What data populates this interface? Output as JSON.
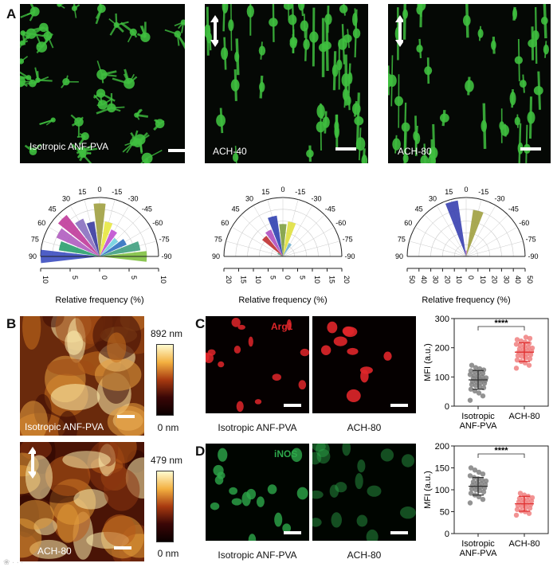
{
  "panel_letters": {
    "a": "A",
    "b": "B",
    "c": "C",
    "d": "D"
  },
  "panel_a": {
    "images": [
      {
        "caption": "Isotropic ANF-PVA",
        "aligned": false
      },
      {
        "caption": "ACH-40",
        "aligned": true
      },
      {
        "caption": "ACH-80",
        "aligned": true
      }
    ],
    "polar_xlabel": "Relative frequency (%)",
    "angle_labels": [
      "90",
      "75",
      "60",
      "45",
      "30",
      "15",
      "0",
      "-15",
      "-30",
      "-45",
      "-60",
      "-75",
      "-90"
    ],
    "polar_ticks": [
      [
        "10",
        "5",
        "0",
        "5",
        "10"
      ],
      [
        "20",
        "15",
        "10",
        "5",
        "0",
        "5",
        "10",
        "15",
        "20"
      ],
      [
        "50",
        "40",
        "30",
        "20",
        "10",
        "0",
        "10",
        "20",
        "30",
        "40",
        "50"
      ]
    ]
  },
  "panel_b": {
    "images": [
      {
        "caption": "Isotropic ANF-PVA",
        "max_label": "892 nm",
        "min_label": "0 nm"
      },
      {
        "caption": "ACH-80",
        "max_label": "479 nm",
        "min_label": "0 nm"
      }
    ]
  },
  "panel_c": {
    "marker": "Arg1",
    "captions": [
      "Isotropic ANF-PVA",
      "ACH-80"
    ]
  },
  "panel_d": {
    "marker": "iNOS",
    "captions": [
      "Isotropic ANF-PVA",
      "ACH-80"
    ]
  },
  "colors": {
    "fluor_green": "#3fbf3f",
    "arg1_red": "#e0262a",
    "inos_green": "#2da84a",
    "dot_gray": "#808080",
    "dot_red": "#f08080",
    "err_red": "#e03030"
  },
  "chart_data": [
    {
      "type": "polar_bar",
      "title": "",
      "xlabel": "Relative frequency (%)",
      "range": [
        0,
        10
      ],
      "angles_deg": [
        90,
        75,
        60,
        45,
        30,
        15,
        0,
        -15,
        -30,
        -45,
        -60,
        -75,
        -90
      ],
      "values": [
        10,
        7,
        8,
        9,
        7,
        6,
        9,
        6,
        5,
        4,
        5,
        7,
        8
      ],
      "colors": [
        "#3b4cc0",
        "#2aa06e",
        "#b05cc0",
        "#c03a9a",
        "#8a6fc0",
        "#3a3aa0",
        "#a0a040",
        "#e8e840",
        "#c050d0",
        "#70d0e0",
        "#3070c0",
        "#40a080",
        "#80c040"
      ]
    },
    {
      "type": "polar_bar",
      "title": "",
      "xlabel": "Relative frequency (%)",
      "range": [
        0,
        20
      ],
      "angles_deg": [
        60,
        45,
        30,
        15,
        0,
        -15,
        -30
      ],
      "values": [
        2,
        9,
        10,
        14,
        11,
        12,
        5
      ],
      "colors": [
        "#40a080",
        "#c03030",
        "#b050c0",
        "#3040b0",
        "#80a040",
        "#e0e040",
        "#70b0d0"
      ]
    },
    {
      "type": "polar_bar",
      "title": "",
      "xlabel": "Relative frequency (%)",
      "range": [
        0,
        50
      ],
      "angles_deg": [
        15,
        0,
        -15
      ],
      "values": [
        48,
        5,
        40
      ],
      "colors": [
        "#3840b0",
        "#b050c0",
        "#a0a040"
      ]
    },
    {
      "type": "scatter",
      "title": "",
      "ylabel": "MFI (a.u.)",
      "ylim": [
        0,
        300
      ],
      "yticks": [
        0,
        100,
        200,
        300
      ],
      "categories": [
        "Isotropic ANF-PVA",
        "ACH-80"
      ],
      "significance": "****",
      "series": [
        {
          "category": "Isotropic ANF-PVA",
          "mean": 90,
          "sd": 32,
          "values": [
            20,
            35,
            45,
            52,
            58,
            63,
            67,
            70,
            74,
            78,
            80,
            83,
            85,
            88,
            90,
            92,
            95,
            97,
            100,
            103,
            105,
            108,
            112,
            115,
            118,
            121,
            124,
            128,
            132,
            140
          ]
        },
        {
          "category": "ACH-80",
          "mean": 185,
          "sd": 32,
          "values": [
            130,
            140,
            148,
            153,
            158,
            162,
            166,
            170,
            173,
            176,
            179,
            182,
            185,
            188,
            190,
            193,
            196,
            199,
            202,
            205,
            208,
            212,
            215,
            219,
            223,
            228,
            232,
            236
          ]
        }
      ]
    },
    {
      "type": "scatter",
      "title": "",
      "ylabel": "MFI (a.u.)",
      "ylim": [
        0,
        200
      ],
      "yticks": [
        0,
        50,
        100,
        150,
        200
      ],
      "categories": [
        "Isotropic ANF-PVA",
        "ACH-80"
      ],
      "significance": "****",
      "series": [
        {
          "category": "Isotropic ANF-PVA",
          "mean": 108,
          "sd": 20,
          "values": [
            70,
            78,
            84,
            88,
            92,
            95,
            98,
            100,
            102,
            104,
            106,
            108,
            110,
            112,
            114,
            116,
            118,
            120,
            122,
            125,
            128,
            132,
            136,
            140,
            145,
            150
          ]
        },
        {
          "category": "ACH-80",
          "mean": 68,
          "sd": 17,
          "values": [
            42,
            46,
            50,
            52,
            55,
            58,
            60,
            62,
            64,
            66,
            68,
            70,
            72,
            74,
            76,
            78,
            80,
            82,
            85,
            88,
            92
          ]
        }
      ]
    }
  ]
}
